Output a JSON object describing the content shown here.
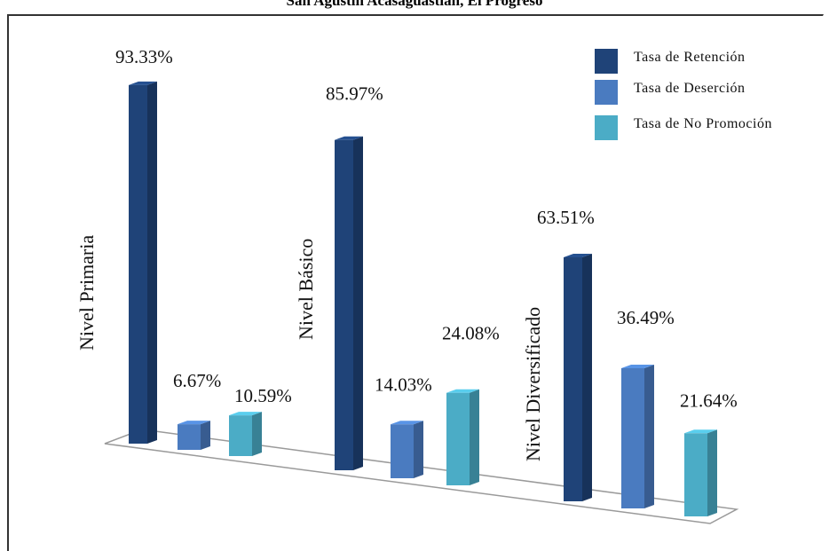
{
  "chart_data": {
    "type": "bar",
    "title": "San Agustín Acasaguastlán, El Progreso",
    "categories": [
      "Nivel Primaria",
      "Nivel Básico",
      "Nivel Diversificado"
    ],
    "series": [
      {
        "name": "Tasa de Retención",
        "values": [
          93.33,
          85.97,
          63.51
        ],
        "color": "#1F4378"
      },
      {
        "name": "Tasa de Deserción",
        "values": [
          6.67,
          14.03,
          36.49
        ],
        "color": "#4A7BC0"
      },
      {
        "name": "Tasa de No Promoción",
        "values": [
          10.59,
          24.08,
          21.64
        ],
        "color": "#4BACC6"
      }
    ],
    "value_labels": [
      [
        "93.33%",
        "6.67%",
        "10.59%"
      ],
      [
        "85.97%",
        "14.03%",
        "24.08%"
      ],
      [
        "63.51%",
        "36.49%",
        "21.64%"
      ]
    ],
    "ylim": [
      0,
      100
    ],
    "grid": false,
    "legend": "top-right"
  }
}
